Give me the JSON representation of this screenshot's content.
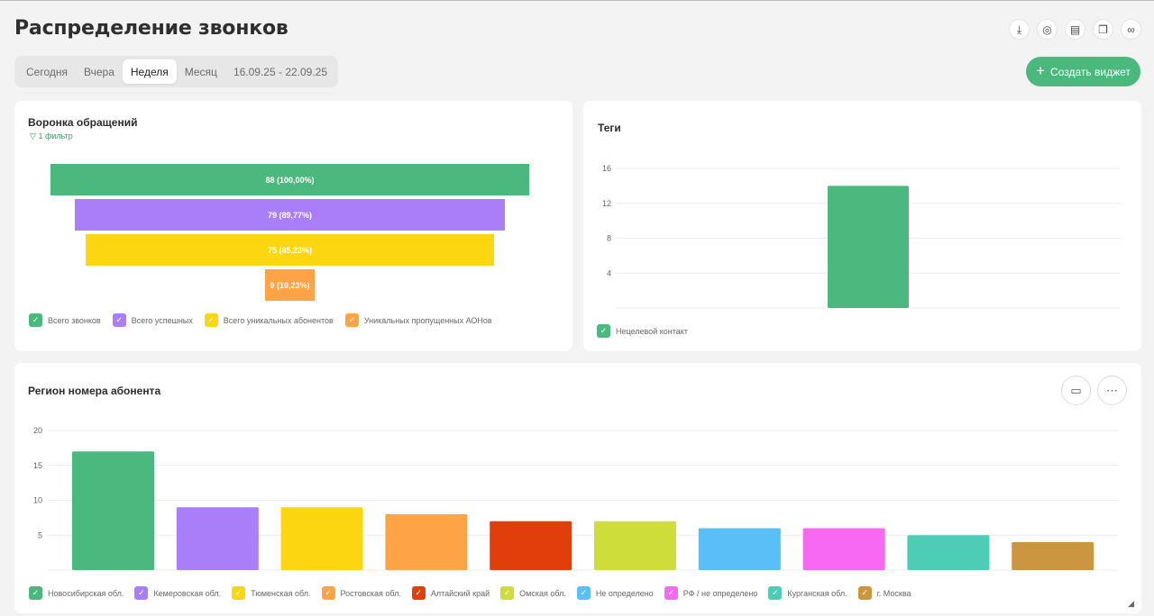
{
  "page": {
    "title": "Распределение звонков"
  },
  "header_icons": [
    {
      "name": "download-icon",
      "glyph": "⤓"
    },
    {
      "name": "target-icon",
      "glyph": "◎"
    },
    {
      "name": "document-icon",
      "glyph": "▤"
    },
    {
      "name": "copy-icon",
      "glyph": "❐"
    },
    {
      "name": "link-icon",
      "glyph": "∞"
    }
  ],
  "tabs": [
    {
      "label": "Сегодня",
      "active": false
    },
    {
      "label": "Вчера",
      "active": false
    },
    {
      "label": "Неделя",
      "active": true
    },
    {
      "label": "Месяц",
      "active": false
    },
    {
      "label": "16.09.25 - 22.09.25",
      "active": false
    }
  ],
  "create_button": {
    "label": "Создать виджет"
  },
  "funnel": {
    "title": "Воронка обращений",
    "filter_label": "1 фильтр",
    "stages": [
      {
        "label": "88 (100,00%)",
        "value": 88,
        "color": "#4bb87d",
        "legend": "Всего звонков"
      },
      {
        "label": "79 (89,77%)",
        "value": 79,
        "color": "#a97ef8",
        "legend": "Всего успешных"
      },
      {
        "label": "75 (85,23%)",
        "value": 75,
        "color": "#fcd711",
        "legend": "Всего уникальных абонентов"
      },
      {
        "label": "9 (10,23%)",
        "value": 9,
        "color": "#fea346",
        "legend": "Уникальных пропущенных АОНов"
      }
    ]
  },
  "tags": {
    "title": "Теги",
    "chart_data": {
      "type": "bar",
      "categories": [
        ""
      ],
      "series": [
        {
          "name": "Нецелевой контакт",
          "values": [
            14
          ],
          "color": "#4bb87d"
        }
      ],
      "y_ticks": [
        "4",
        "8",
        "12",
        "16"
      ],
      "ylim": [
        0,
        16
      ],
      "grid": true,
      "legend": "bottom-left"
    }
  },
  "region": {
    "title": "Регион номера абонента",
    "chart_data": {
      "type": "bar",
      "categories": [
        "Новосибирская обл.",
        "Кемеровская обл.",
        "Тюменская обл.",
        "Ростовская обл.",
        "Алтайский край",
        "Омская обл.",
        "Не определено",
        "РФ / не определено",
        "Курганская обл.",
        "г. Москва"
      ],
      "values": [
        17,
        9,
        9,
        8,
        7,
        7,
        6,
        6,
        5,
        4
      ],
      "colors": [
        "#4bb87d",
        "#a97ef8",
        "#fcd711",
        "#fea346",
        "#e03e0a",
        "#cfdd3b",
        "#5bbff7",
        "#f769f3",
        "#4dcdb6",
        "#cc9641"
      ],
      "y_ticks": [
        "5",
        "10",
        "15",
        "20"
      ],
      "ylim": [
        0,
        20
      ],
      "grid": true,
      "legend": "bottom-left"
    }
  }
}
